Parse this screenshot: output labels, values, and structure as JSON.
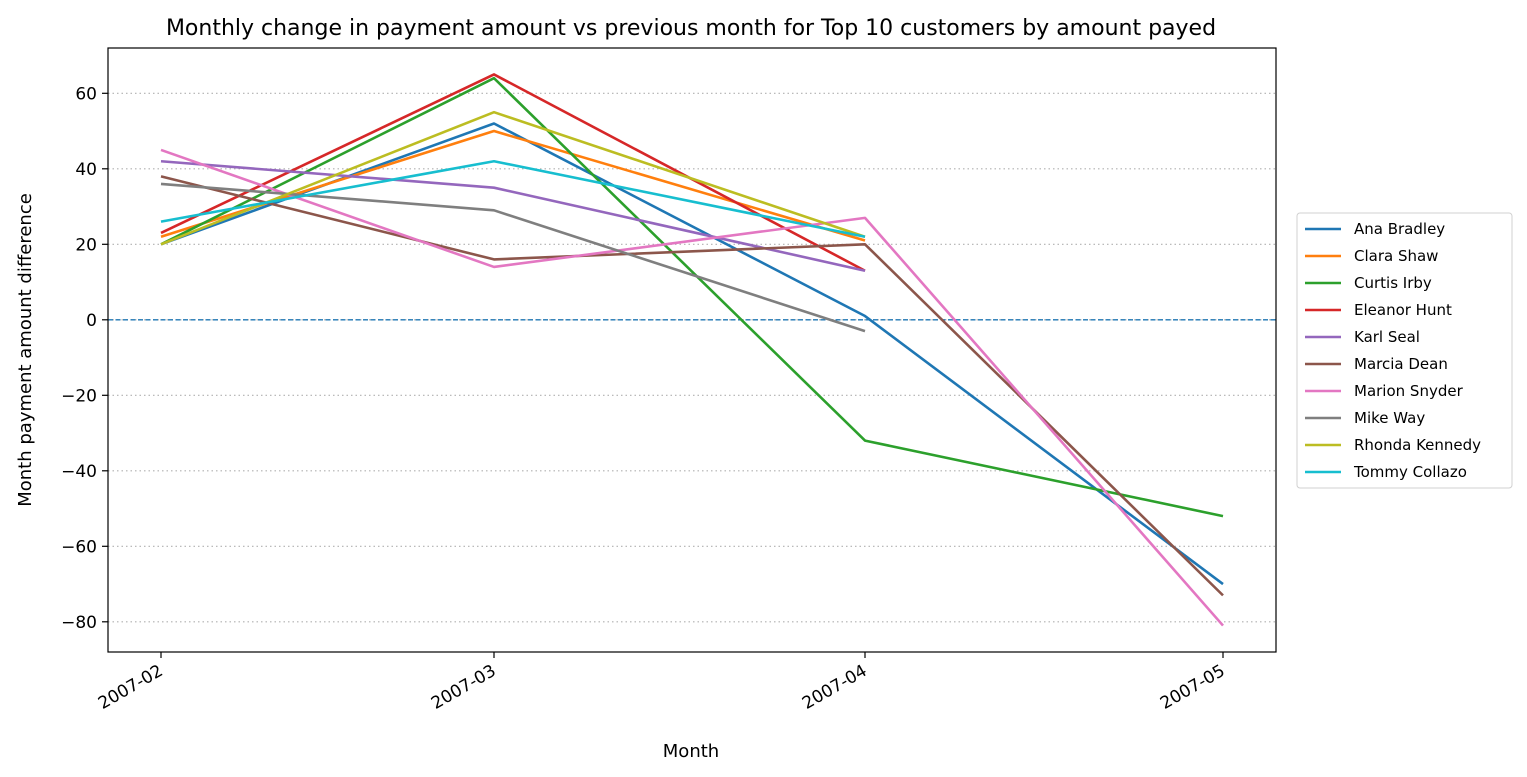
{
  "chart_data": {
    "type": "line",
    "title": "Monthly change in payment amount vs previous month for Top 10 customers by amount payed",
    "xlabel": "Month",
    "ylabel": "Month payment amount difference",
    "x": [
      "2007-02",
      "2007-03",
      "2007-04",
      "2007-05"
    ],
    "ylim": [
      -88,
      72
    ],
    "yticks": [
      -80,
      -60,
      -40,
      -20,
      0,
      20,
      40,
      60
    ],
    "ytick_labels": [
      "−80",
      "−60",
      "−40",
      "−20",
      "0",
      "20",
      "40",
      "60"
    ],
    "grid": "horizontal dotted",
    "reference_line": {
      "y": 0,
      "style": "dashed",
      "color": "#1f77b4"
    },
    "legend_position": "right-center",
    "series": [
      {
        "name": "Ana Bradley",
        "color": "#1f77b4",
        "values": [
          20,
          52,
          1,
          -70
        ]
      },
      {
        "name": "Clara Shaw",
        "color": "#ff7f0e",
        "values": [
          22,
          50,
          21,
          null
        ]
      },
      {
        "name": "Curtis Irby",
        "color": "#2ca02c",
        "values": [
          20,
          64,
          -32,
          -52
        ]
      },
      {
        "name": "Eleanor Hunt",
        "color": "#d62728",
        "values": [
          23,
          65,
          13,
          null
        ]
      },
      {
        "name": "Karl Seal",
        "color": "#9467bd",
        "values": [
          42,
          35,
          13,
          null
        ]
      },
      {
        "name": "Marcia Dean",
        "color": "#8c564b",
        "values": [
          38,
          16,
          20,
          -73
        ]
      },
      {
        "name": "Marion Snyder",
        "color": "#e377c2",
        "values": [
          45,
          14,
          27,
          -81
        ]
      },
      {
        "name": "Mike Way",
        "color": "#7f7f7f",
        "values": [
          36,
          29,
          -3,
          null
        ]
      },
      {
        "name": "Rhonda Kennedy",
        "color": "#bcbd22",
        "values": [
          20,
          55,
          22,
          null
        ]
      },
      {
        "name": "Tommy Collazo",
        "color": "#17becf",
        "values": [
          26,
          42,
          22,
          null
        ]
      }
    ]
  }
}
